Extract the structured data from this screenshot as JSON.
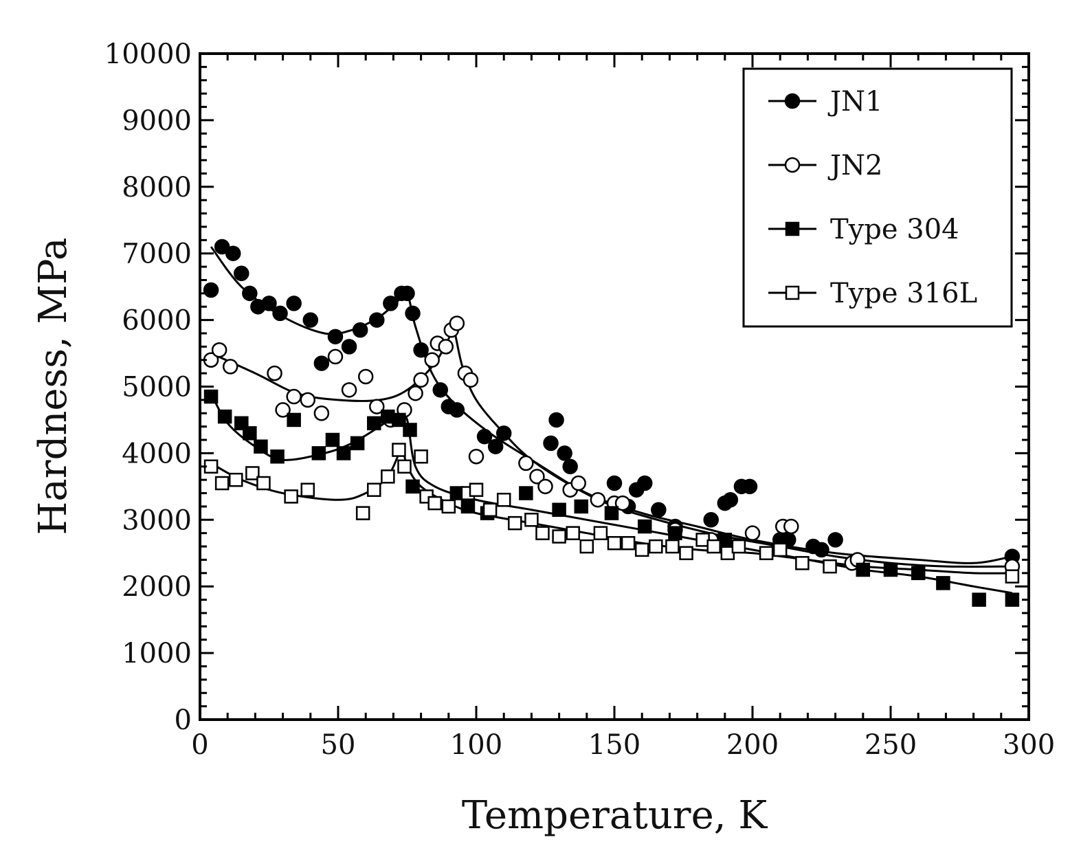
{
  "chart_data": {
    "type": "scatter",
    "title": "",
    "xlabel": "Temperature, K",
    "ylabel": "Hardness, MPa",
    "xlim": [
      0,
      300
    ],
    "ylim": [
      0,
      10000
    ],
    "xticks": [
      0,
      50,
      100,
      150,
      200,
      250,
      300
    ],
    "yticks": [
      0,
      1000,
      2000,
      3000,
      4000,
      5000,
      6000,
      7000,
      8000,
      9000,
      10000
    ],
    "xtick_labels": [
      "0",
      "50",
      "100",
      "150",
      "200",
      "250",
      "300"
    ],
    "ytick_labels": [
      "0",
      "1000",
      "2000",
      "3000",
      "4000",
      "5000",
      "6000",
      "7000",
      "8000",
      "9000",
      "10000"
    ],
    "grid": false,
    "legend_position": "top-right",
    "series": [
      {
        "name": "JN1",
        "marker": "filled-circle",
        "points": [
          [
            4,
            6450
          ],
          [
            8,
            7100
          ],
          [
            12,
            7000
          ],
          [
            15,
            6700
          ],
          [
            18,
            6400
          ],
          [
            21,
            6200
          ],
          [
            25,
            6250
          ],
          [
            29,
            6100
          ],
          [
            34,
            6250
          ],
          [
            40,
            6000
          ],
          [
            44,
            5350
          ],
          [
            49,
            5750
          ],
          [
            54,
            5600
          ],
          [
            58,
            5850
          ],
          [
            64,
            6000
          ],
          [
            69,
            6250
          ],
          [
            73,
            6400
          ],
          [
            75,
            6400
          ],
          [
            77,
            6100
          ],
          [
            80,
            5550
          ],
          [
            87,
            4950
          ],
          [
            90,
            4700
          ],
          [
            93,
            4650
          ],
          [
            103,
            4250
          ],
          [
            107,
            4100
          ],
          [
            110,
            4300
          ],
          [
            127,
            4150
          ],
          [
            129,
            4500
          ],
          [
            132,
            4000
          ],
          [
            134,
            3800
          ],
          [
            150,
            3550
          ],
          [
            155,
            3200
          ],
          [
            158,
            3450
          ],
          [
            161,
            3550
          ],
          [
            166,
            3150
          ],
          [
            172,
            2900
          ],
          [
            185,
            3000
          ],
          [
            190,
            3250
          ],
          [
            192,
            3300
          ],
          [
            196,
            3500
          ],
          [
            199,
            3500
          ],
          [
            210,
            2700
          ],
          [
            213,
            2700
          ],
          [
            222,
            2600
          ],
          [
            225,
            2550
          ],
          [
            230,
            2700
          ],
          [
            294,
            2450
          ]
        ],
        "fit": [
          [
            4,
            7100
          ],
          [
            15,
            6500
          ],
          [
            30,
            6050
          ],
          [
            45,
            5800
          ],
          [
            55,
            5850
          ],
          [
            65,
            6050
          ],
          [
            72,
            6300
          ],
          [
            75,
            6400
          ],
          [
            78,
            5900
          ],
          [
            84,
            5200
          ],
          [
            92,
            4750
          ],
          [
            105,
            4300
          ],
          [
            120,
            3900
          ],
          [
            140,
            3400
          ],
          [
            160,
            3100
          ],
          [
            180,
            2900
          ],
          [
            200,
            2700
          ],
          [
            230,
            2500
          ],
          [
            260,
            2400
          ],
          [
            280,
            2350
          ],
          [
            294,
            2450
          ]
        ]
      },
      {
        "name": "JN2",
        "marker": "open-circle",
        "points": [
          [
            4,
            5400
          ],
          [
            7,
            5550
          ],
          [
            11,
            5300
          ],
          [
            27,
            5200
          ],
          [
            30,
            4650
          ],
          [
            34,
            4850
          ],
          [
            39,
            4800
          ],
          [
            44,
            4600
          ],
          [
            49,
            5450
          ],
          [
            54,
            4950
          ],
          [
            60,
            5150
          ],
          [
            64,
            4700
          ],
          [
            69,
            4500
          ],
          [
            74,
            4650
          ],
          [
            78,
            4900
          ],
          [
            80,
            5100
          ],
          [
            84,
            5400
          ],
          [
            86,
            5650
          ],
          [
            89,
            5600
          ],
          [
            91,
            5850
          ],
          [
            93,
            5950
          ],
          [
            96,
            5200
          ],
          [
            98,
            5100
          ],
          [
            100,
            3950
          ],
          [
            118,
            3850
          ],
          [
            122,
            3650
          ],
          [
            125,
            3500
          ],
          [
            134,
            3450
          ],
          [
            137,
            3550
          ],
          [
            144,
            3300
          ],
          [
            150,
            3250
          ],
          [
            153,
            3250
          ],
          [
            172,
            2850
          ],
          [
            185,
            2700
          ],
          [
            200,
            2800
          ],
          [
            211,
            2900
          ],
          [
            214,
            2900
          ],
          [
            236,
            2350
          ],
          [
            238,
            2400
          ],
          [
            294,
            2300
          ]
        ],
        "fit": [
          [
            4,
            5500
          ],
          [
            20,
            5200
          ],
          [
            35,
            4900
          ],
          [
            50,
            4800
          ],
          [
            65,
            4800
          ],
          [
            75,
            4950
          ],
          [
            85,
            5350
          ],
          [
            91,
            5800
          ],
          [
            92,
            5850
          ],
          [
            95,
            5300
          ],
          [
            100,
            4800
          ],
          [
            110,
            4300
          ],
          [
            120,
            3900
          ],
          [
            135,
            3500
          ],
          [
            150,
            3200
          ],
          [
            170,
            2950
          ],
          [
            190,
            2750
          ],
          [
            210,
            2600
          ],
          [
            230,
            2450
          ],
          [
            250,
            2350
          ],
          [
            270,
            2300
          ],
          [
            294,
            2300
          ]
        ]
      },
      {
        "name": "Type 304",
        "marker": "filled-square",
        "points": [
          [
            4,
            4850
          ],
          [
            9,
            4550
          ],
          [
            15,
            4450
          ],
          [
            18,
            4300
          ],
          [
            22,
            4100
          ],
          [
            28,
            3950
          ],
          [
            34,
            4500
          ],
          [
            43,
            4000
          ],
          [
            48,
            4200
          ],
          [
            52,
            4000
          ],
          [
            57,
            4150
          ],
          [
            63,
            4450
          ],
          [
            68,
            4550
          ],
          [
            72,
            4500
          ],
          [
            76,
            4350
          ],
          [
            77,
            3500
          ],
          [
            93,
            3400
          ],
          [
            97,
            3200
          ],
          [
            104,
            3100
          ],
          [
            118,
            3400
          ],
          [
            130,
            3150
          ],
          [
            138,
            3200
          ],
          [
            149,
            3100
          ],
          [
            161,
            2900
          ],
          [
            172,
            2800
          ],
          [
            190,
            2700
          ],
          [
            240,
            2250
          ],
          [
            250,
            2250
          ],
          [
            260,
            2200
          ],
          [
            269,
            2050
          ],
          [
            282,
            1800
          ],
          [
            294,
            1800
          ]
        ],
        "fit": [
          [
            4,
            4900
          ],
          [
            10,
            4450
          ],
          [
            20,
            4100
          ],
          [
            30,
            3900
          ],
          [
            45,
            4000
          ],
          [
            55,
            4150
          ],
          [
            65,
            4400
          ],
          [
            72,
            4600
          ],
          [
            75,
            4500
          ],
          [
            78,
            3800
          ],
          [
            85,
            3500
          ],
          [
            100,
            3300
          ],
          [
            120,
            3150
          ],
          [
            140,
            3000
          ],
          [
            160,
            2850
          ],
          [
            180,
            2700
          ],
          [
            200,
            2550
          ],
          [
            220,
            2400
          ],
          [
            240,
            2250
          ],
          [
            260,
            2150
          ],
          [
            280,
            2000
          ],
          [
            294,
            1900
          ]
        ]
      },
      {
        "name": "Type 316L",
        "marker": "open-square",
        "points": [
          [
            4,
            3800
          ],
          [
            8,
            3550
          ],
          [
            13,
            3600
          ],
          [
            19,
            3700
          ],
          [
            23,
            3550
          ],
          [
            33,
            3350
          ],
          [
            39,
            3450
          ],
          [
            59,
            3100
          ],
          [
            63,
            3450
          ],
          [
            68,
            3650
          ],
          [
            72,
            4050
          ],
          [
            74,
            3800
          ],
          [
            80,
            3950
          ],
          [
            82,
            3350
          ],
          [
            85,
            3250
          ],
          [
            90,
            3200
          ],
          [
            97,
            3400
          ],
          [
            100,
            3450
          ],
          [
            105,
            3150
          ],
          [
            110,
            3300
          ],
          [
            114,
            2950
          ],
          [
            120,
            3000
          ],
          [
            124,
            2800
          ],
          [
            130,
            2750
          ],
          [
            135,
            2800
          ],
          [
            140,
            2600
          ],
          [
            145,
            2800
          ],
          [
            150,
            2650
          ],
          [
            155,
            2650
          ],
          [
            160,
            2550
          ],
          [
            165,
            2600
          ],
          [
            171,
            2600
          ],
          [
            176,
            2500
          ],
          [
            182,
            2700
          ],
          [
            186,
            2600
          ],
          [
            191,
            2500
          ],
          [
            195,
            2600
          ],
          [
            205,
            2500
          ],
          [
            210,
            2550
          ],
          [
            218,
            2350
          ],
          [
            228,
            2300
          ],
          [
            294,
            2150
          ]
        ],
        "fit": [
          [
            4,
            3850
          ],
          [
            15,
            3600
          ],
          [
            30,
            3400
          ],
          [
            50,
            3300
          ],
          [
            60,
            3400
          ],
          [
            68,
            3650
          ],
          [
            73,
            4050
          ],
          [
            75,
            3800
          ],
          [
            80,
            3500
          ],
          [
            90,
            3250
          ],
          [
            100,
            3100
          ],
          [
            120,
            2950
          ],
          [
            140,
            2800
          ],
          [
            160,
            2650
          ],
          [
            180,
            2550
          ],
          [
            200,
            2500
          ],
          [
            220,
            2400
          ],
          [
            240,
            2300
          ],
          [
            260,
            2250
          ],
          [
            280,
            2200
          ],
          [
            294,
            2200
          ]
        ]
      }
    ]
  }
}
